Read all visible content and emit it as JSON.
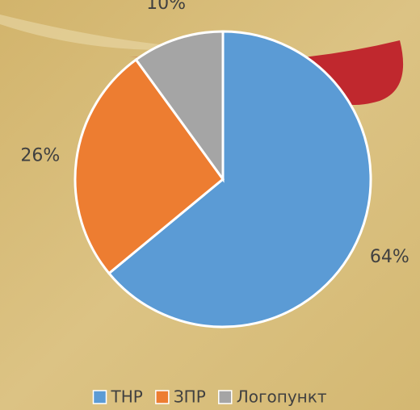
{
  "chart_data": {
    "type": "pie",
    "categories": [
      "ТНР",
      "ЗПР",
      "Логопункт"
    ],
    "values": [
      64,
      26,
      10
    ],
    "value_labels": [
      "64%",
      "26%",
      "10%"
    ],
    "colors": [
      "#5b9bd5",
      "#ed7d31",
      "#a5a5a5"
    ],
    "legend": "bottom"
  }
}
